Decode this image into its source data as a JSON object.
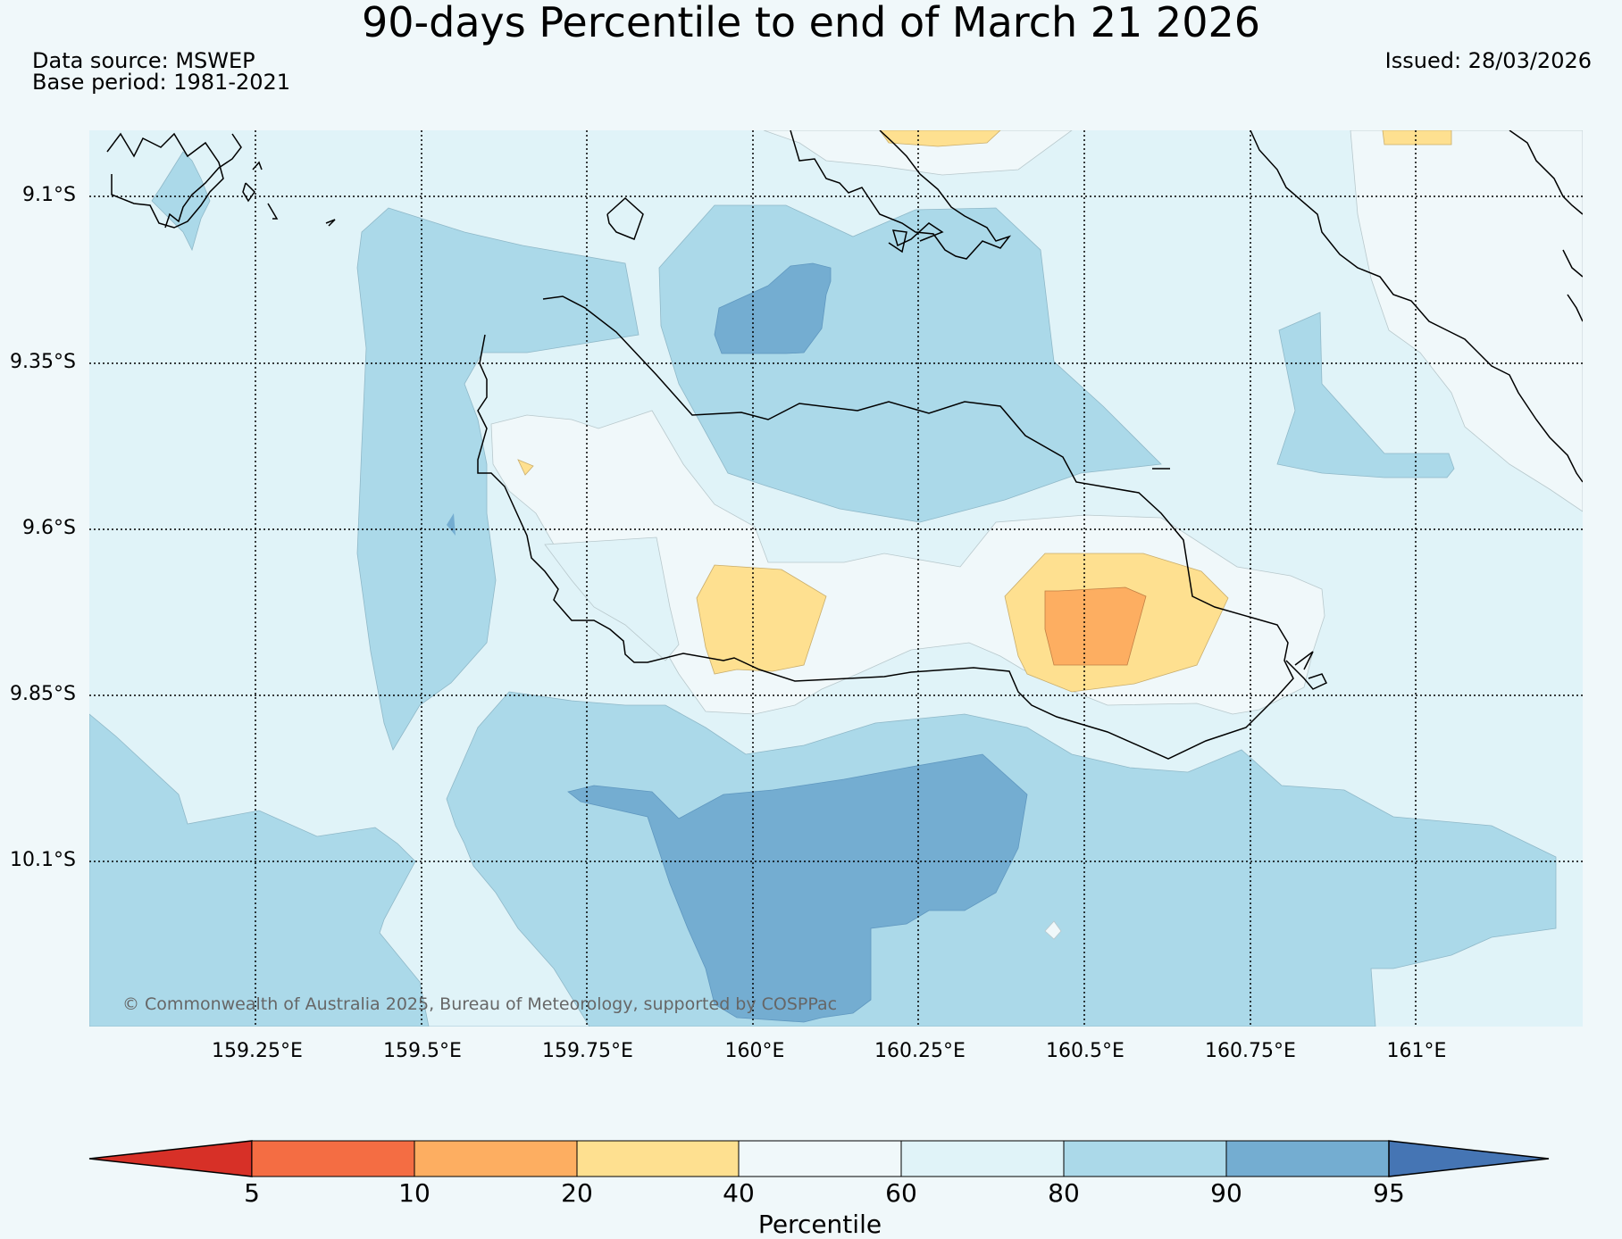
{
  "title": "90-days Percentile to end of March 21 2026",
  "data_source": "Data source: MSWEP",
  "base_period": "Base period: 1981-2021",
  "issued": "Issued: 28/03/2026",
  "copyright": "© Commonwealth of Australia 2025, Bureau of Meteorology, supported by COSPPac",
  "map": {
    "lat_labels": [
      "9.1°S",
      "9.35°S",
      "9.6°S",
      "9.85°S",
      "10.1°S"
    ],
    "lon_labels": [
      "159.25°E",
      "159.5°E",
      "159.75°E",
      "160°E",
      "160.25°E",
      "160.5°E",
      "160.75°E",
      "161°E"
    ]
  },
  "colorbar": {
    "title": "Percentile",
    "ticks": [
      "5",
      "10",
      "20",
      "40",
      "60",
      "80",
      "90",
      "95"
    ],
    "colors": [
      "#d73027",
      "#f46d43",
      "#fdae61",
      "#fee090",
      "#f0f8fa",
      "#e0f3f8",
      "#abd9e9",
      "#74add1",
      "#4575b4"
    ]
  }
}
